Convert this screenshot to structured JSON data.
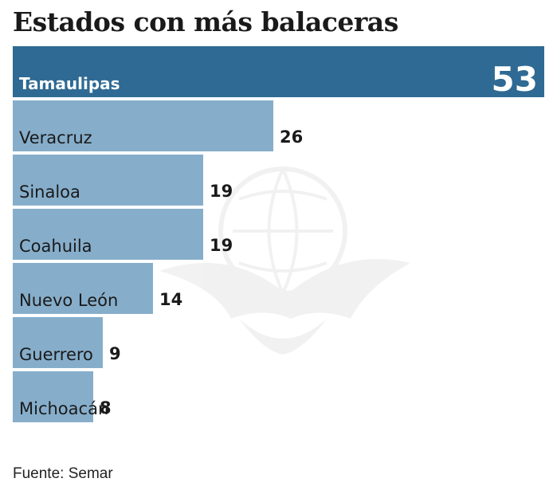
{
  "chart_data": {
    "type": "bar",
    "orientation": "horizontal",
    "title": "Estados con más balaceras",
    "categories": [
      "Tamaulipas",
      "Veracruz",
      "Sinaloa",
      "Coahuila",
      "Nuevo León",
      "Guerrero",
      "Michoacán"
    ],
    "values": [
      53,
      26,
      19,
      19,
      14,
      9,
      8
    ],
    "xlim": [
      0,
      53
    ],
    "source": "Fuente: Semar"
  },
  "colors": {
    "highlight_bar": "#2e6a93",
    "bar": "#86aecb",
    "highlight_text": "#ffffff",
    "text": "#1a1a1a"
  }
}
